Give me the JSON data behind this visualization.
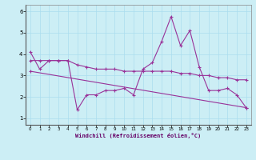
{
  "xlabel": "Windchill (Refroidissement éolien,°C)",
  "background_color": "#cceef5",
  "line_color": "#993399",
  "grid_color": "#aaddee",
  "xlim": [
    -0.5,
    23.5
  ],
  "ylim": [
    0.7,
    6.3
  ],
  "xticks": [
    0,
    1,
    2,
    3,
    4,
    5,
    6,
    7,
    8,
    9,
    10,
    11,
    12,
    13,
    14,
    15,
    16,
    17,
    18,
    19,
    20,
    21,
    22,
    23
  ],
  "yticks": [
    1,
    2,
    3,
    4,
    5,
    6
  ],
  "series1_x": [
    0,
    1,
    2,
    3,
    4,
    5,
    6,
    7,
    8,
    9,
    10,
    11,
    12,
    13,
    14,
    15,
    16,
    17,
    18,
    19,
    20,
    21,
    22,
    23
  ],
  "series1_y": [
    4.1,
    3.3,
    3.7,
    3.7,
    3.7,
    1.4,
    2.1,
    2.1,
    2.3,
    2.3,
    2.4,
    2.1,
    3.3,
    3.6,
    4.6,
    5.75,
    4.4,
    5.1,
    3.4,
    2.3,
    2.3,
    2.4,
    2.1,
    1.5
  ],
  "series2_x": [
    0,
    1,
    2,
    3,
    4,
    5,
    6,
    7,
    8,
    9,
    10,
    11,
    12,
    13,
    14,
    15,
    16,
    17,
    18,
    19,
    20,
    21,
    22,
    23
  ],
  "series2_y": [
    3.7,
    3.7,
    3.7,
    3.7,
    3.7,
    3.5,
    3.4,
    3.3,
    3.3,
    3.3,
    3.2,
    3.2,
    3.2,
    3.2,
    3.2,
    3.2,
    3.1,
    3.1,
    3.0,
    3.0,
    2.9,
    2.9,
    2.8,
    2.8
  ],
  "series3_x": [
    0,
    23
  ],
  "series3_y": [
    3.2,
    1.5
  ]
}
